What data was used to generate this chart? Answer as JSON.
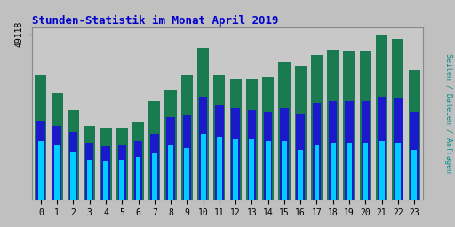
{
  "title": "Stunden-Statistik im Monat April 2019",
  "ylabel_rotated": "Seiten / Dateien / Anfragen",
  "ytick_label": "49118",
  "hours": [
    0,
    1,
    2,
    3,
    4,
    5,
    6,
    7,
    8,
    9,
    10,
    11,
    12,
    13,
    14,
    15,
    16,
    17,
    18,
    19,
    20,
    21,
    22,
    23
  ],
  "green_vals": [
    0.72,
    0.62,
    0.52,
    0.43,
    0.42,
    0.42,
    0.45,
    0.57,
    0.64,
    0.72,
    0.88,
    0.72,
    0.7,
    0.7,
    0.71,
    0.8,
    0.78,
    0.84,
    0.87,
    0.86,
    0.86,
    0.96,
    0.93,
    0.75
  ],
  "blue_vals": [
    0.46,
    0.43,
    0.39,
    0.33,
    0.31,
    0.32,
    0.34,
    0.38,
    0.48,
    0.49,
    0.6,
    0.55,
    0.53,
    0.52,
    0.51,
    0.53,
    0.5,
    0.56,
    0.57,
    0.57,
    0.57,
    0.6,
    0.59,
    0.51
  ],
  "cyan_vals": [
    0.34,
    0.32,
    0.28,
    0.23,
    0.22,
    0.23,
    0.25,
    0.27,
    0.32,
    0.3,
    0.38,
    0.36,
    0.35,
    0.35,
    0.34,
    0.34,
    0.29,
    0.32,
    0.33,
    0.33,
    0.33,
    0.34,
    0.33,
    0.29
  ],
  "green_color": "#1a7a50",
  "blue_color": "#1a1acc",
  "cyan_color": "#00ccff",
  "bg_color": "#c0c0c0",
  "plot_bg": "#c8c8c8",
  "title_color": "#0000cc",
  "ylabel_color": "#008b8b",
  "bar_width": 0.72,
  "ylim": [
    0,
    1.0
  ],
  "grid_color": "#b0b0b0"
}
